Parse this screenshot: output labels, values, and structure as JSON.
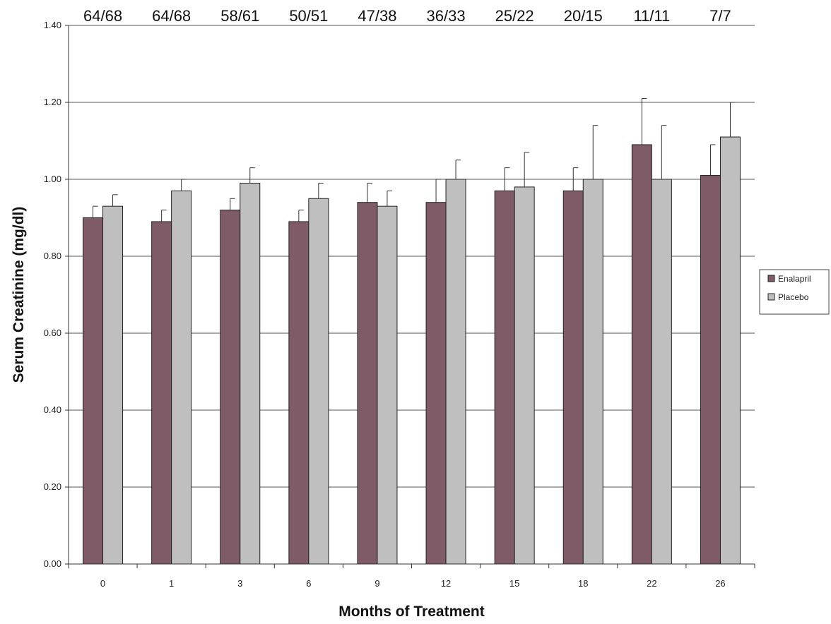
{
  "chart_data": {
    "type": "bar",
    "title": "",
    "xlabel": "Months of Treatment",
    "ylabel": "Serum Creatinine (mg/dl)",
    "categories": [
      "0",
      "1",
      "3",
      "6",
      "9",
      "12",
      "15",
      "18",
      "22",
      "26"
    ],
    "ylim": [
      0,
      1.4
    ],
    "yticks": [
      "0.00",
      "0.20",
      "0.40",
      "0.60",
      "0.80",
      "1.00",
      "1.20",
      "1.40"
    ],
    "grid": true,
    "legend_position": "right",
    "sample_sizes": [
      "64/68",
      "64/68",
      "58/61",
      "50/51",
      "47/38",
      "36/33",
      "25/22",
      "20/15",
      "11/11",
      "7/7"
    ],
    "series": [
      {
        "name": "Enalapril",
        "color": "#7f5a67",
        "values": [
          0.9,
          0.89,
          0.92,
          0.89,
          0.94,
          0.94,
          0.97,
          0.97,
          1.09,
          1.01
        ],
        "error": [
          0.03,
          0.03,
          0.03,
          0.03,
          0.05,
          0.06,
          0.06,
          0.06,
          0.12,
          0.08
        ]
      },
      {
        "name": "Placebo",
        "color": "#bfbfbf",
        "values": [
          0.93,
          0.97,
          0.99,
          0.95,
          0.93,
          1.0,
          0.98,
          1.0,
          1.0,
          1.11
        ],
        "error": [
          0.03,
          0.03,
          0.04,
          0.04,
          0.04,
          0.05,
          0.09,
          0.14,
          0.14,
          0.09
        ]
      }
    ]
  }
}
